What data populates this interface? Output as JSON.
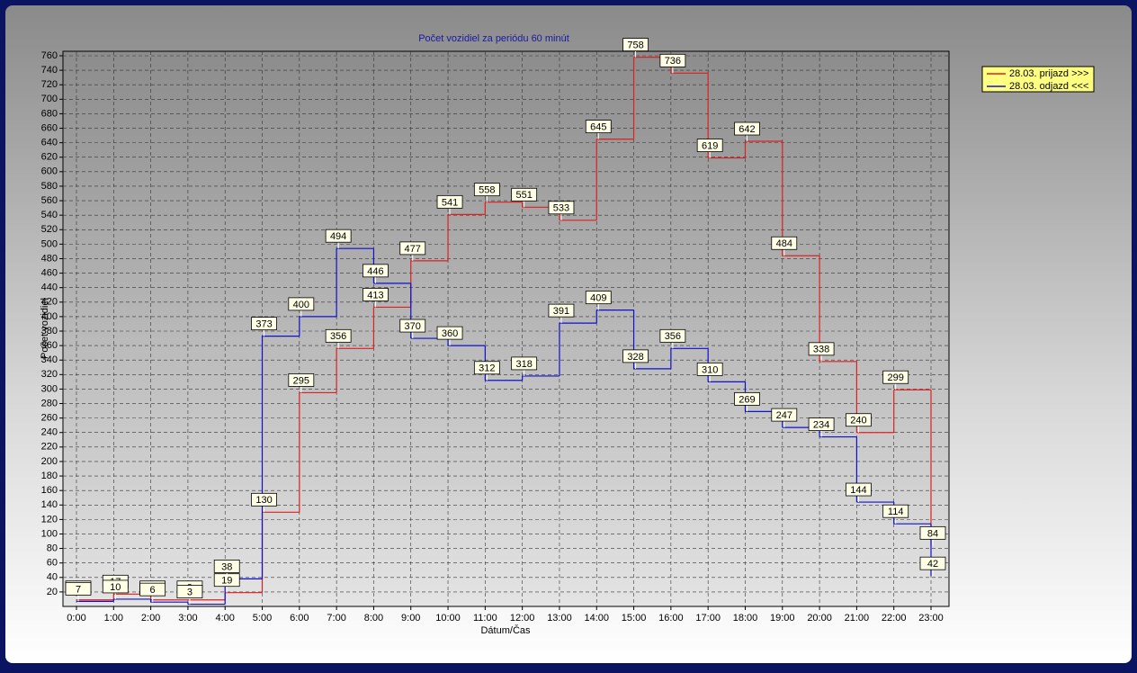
{
  "chart_data": {
    "type": "step",
    "title": "Počet vozidiel za periódu 60 minút",
    "x_label": "Dátum/Čas",
    "y_label": "Počet vozidiel",
    "categories": [
      "0:00",
      "1:00",
      "2:00",
      "3:00",
      "4:00",
      "5:00",
      "6:00",
      "7:00",
      "8:00",
      "9:00",
      "10:00",
      "11:00",
      "12:00",
      "13:00",
      "14:00",
      "15:00",
      "16:00",
      "17:00",
      "18:00",
      "19:00",
      "20:00",
      "21:00",
      "22:00",
      "23:00"
    ],
    "series": [
      {
        "name": "28.03.  prijazd >>>",
        "color": "#e02020",
        "values": [
          9,
          17,
          9,
          9,
          19,
          130,
          295,
          356,
          413,
          477,
          541,
          558,
          551,
          533,
          645,
          758,
          736,
          619,
          642,
          484,
          338,
          240,
          299,
          84
        ]
      },
      {
        "name": "28.03.  odjazd <<<",
        "color": "#1010d0",
        "values": [
          7,
          10,
          6,
          3,
          38,
          373,
          400,
          494,
          446,
          370,
          360,
          312,
          318,
          391,
          409,
          328,
          356,
          310,
          269,
          247,
          234,
          144,
          114,
          42
        ]
      }
    ],
    "ylim": [
      0,
      760
    ],
    "yticks": [
      20,
      40,
      60,
      80,
      100,
      120,
      140,
      160,
      180,
      200,
      220,
      240,
      260,
      280,
      300,
      320,
      340,
      360,
      380,
      400,
      420,
      440,
      460,
      480,
      500,
      520,
      540,
      560,
      580,
      600,
      620,
      640,
      660,
      680,
      700,
      720,
      740,
      760
    ],
    "grid": true
  }
}
